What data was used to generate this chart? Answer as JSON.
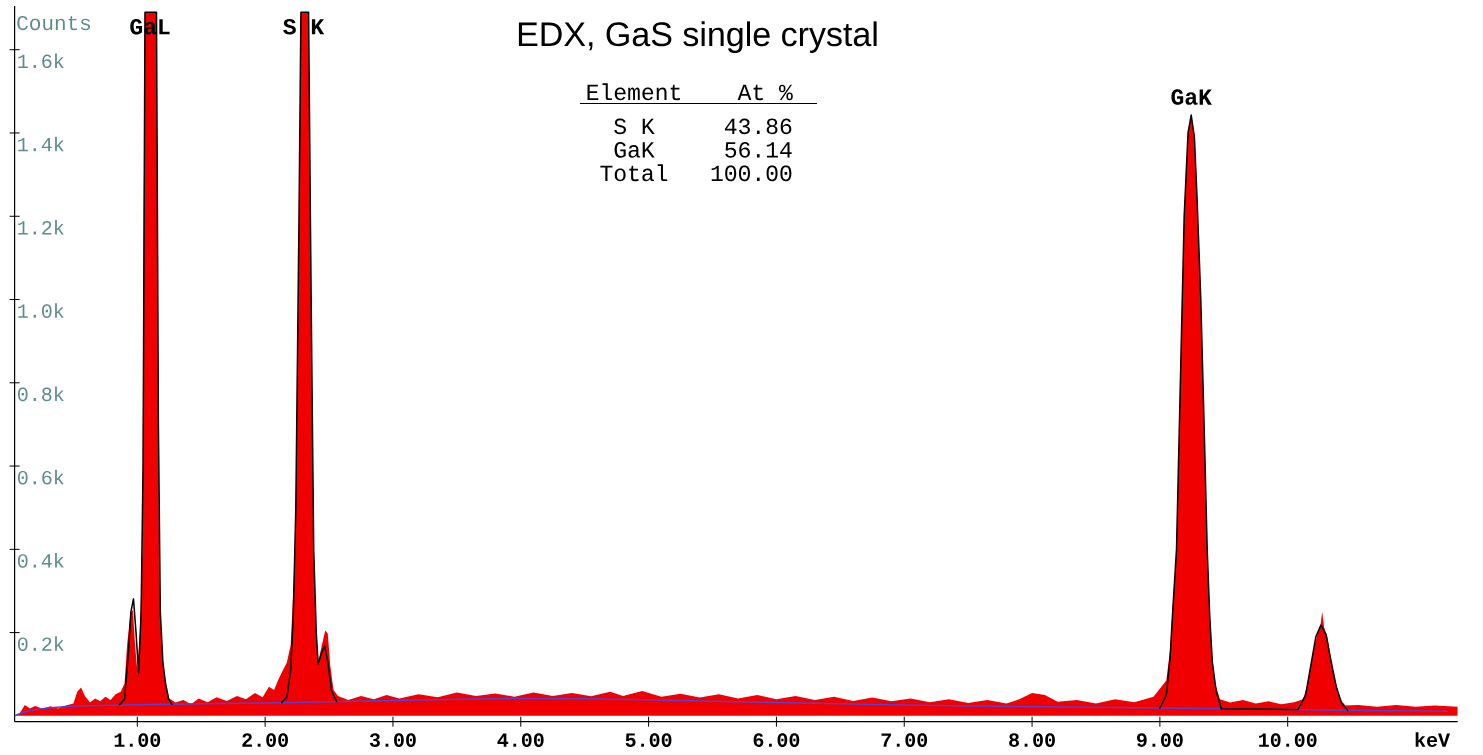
{
  "chart_data": {
    "type": "area",
    "title": "EDX, GaS single crystal",
    "xlabel": "keV",
    "ylabel": "Counts",
    "annotations": [
      {
        "text": "GaL",
        "x": 1.1,
        "y": 1612
      },
      {
        "text": "S K",
        "x": 2.3,
        "y": 1612
      },
      {
        "text": "GaK",
        "x": 9.245,
        "y": 1443
      },
      "Element",
      "At %",
      "S K",
      "43.86",
      "GaK",
      "56.14",
      "Total",
      "100.00"
    ],
    "xlim": [
      0.04,
      11.33
    ],
    "ylim": [
      -14,
      1705
    ],
    "xticks": [
      {
        "value": 1,
        "label": "1.00"
      },
      {
        "value": 2,
        "label": "2.00"
      },
      {
        "value": 3,
        "label": "3.00"
      },
      {
        "value": 4,
        "label": "4.00"
      },
      {
        "value": 5,
        "label": "5.00"
      },
      {
        "value": 6,
        "label": "6.00"
      },
      {
        "value": 7,
        "label": "7.00"
      },
      {
        "value": 8,
        "label": "8.00"
      },
      {
        "value": 9,
        "label": "9.00"
      },
      {
        "value": 10,
        "label": "10.00"
      }
    ],
    "yticks": [
      {
        "value": 200,
        "label": "0.2k"
      },
      {
        "value": 400,
        "label": "0.4k"
      },
      {
        "value": 600,
        "label": "0.6k"
      },
      {
        "value": 800,
        "label": "0.8k"
      },
      {
        "value": 1000,
        "label": "1.0k"
      },
      {
        "value": 1200,
        "label": "1.2k"
      },
      {
        "value": 1400,
        "label": "1.4k"
      },
      {
        "value": 1600,
        "label": "1.6k"
      }
    ],
    "series": [
      {
        "color": "#f00000",
        "x": [
          0.04,
          0.08,
          0.12,
          0.16,
          0.2,
          0.26,
          0.32,
          0.38,
          0.44,
          0.5,
          0.53,
          0.56,
          0.59,
          0.63,
          0.67,
          0.71,
          0.75,
          0.79,
          0.83,
          0.87,
          0.9,
          0.92,
          0.945,
          0.965,
          0.985,
          1.0,
          1.02,
          1.04,
          1.05,
          1.06,
          1.15,
          1.16,
          1.17,
          1.185,
          1.2,
          1.22,
          1.25,
          1.3,
          1.36,
          1.42,
          1.48,
          1.55,
          1.62,
          1.7,
          1.78,
          1.85,
          1.92,
          1.98,
          2.03,
          2.07,
          2.1,
          2.14,
          2.17,
          2.2,
          2.22,
          2.235,
          2.26,
          2.28,
          2.34,
          2.36,
          2.38,
          2.4,
          2.415,
          2.44,
          2.47,
          2.49,
          2.51,
          2.535,
          2.57,
          2.65,
          2.75,
          2.85,
          2.95,
          3.05,
          3.2,
          3.35,
          3.5,
          3.65,
          3.8,
          3.95,
          4.1,
          4.25,
          4.4,
          4.55,
          4.7,
          4.8,
          4.95,
          5.1,
          5.25,
          5.4,
          5.55,
          5.7,
          5.85,
          6.0,
          6.15,
          6.3,
          6.45,
          6.6,
          6.75,
          6.9,
          7.05,
          7.2,
          7.35,
          7.5,
          7.65,
          7.8,
          7.9,
          8.0,
          8.1,
          8.2,
          8.35,
          8.5,
          8.65,
          8.8,
          8.95,
          9.05,
          9.08,
          9.1,
          9.13,
          9.16,
          9.19,
          9.22,
          9.245,
          9.27,
          9.29,
          9.32,
          9.35,
          9.37,
          9.39,
          9.41,
          9.43,
          9.47,
          9.55,
          9.65,
          9.75,
          9.85,
          9.95,
          10.05,
          10.12,
          10.15,
          10.18,
          10.215,
          10.24,
          10.255,
          10.27,
          10.285,
          10.31,
          10.34,
          10.37,
          10.41,
          10.45,
          10.55,
          10.7,
          10.85,
          11.0,
          11.15,
          11.33
        ],
        "values": [
          0,
          6,
          26,
          18,
          24,
          17,
          23,
          18,
          25,
          30,
          58,
          68,
          48,
          32,
          42,
          35,
          46,
          38,
          52,
          58,
          78,
          170,
          245,
          255,
          160,
          110,
          200,
          400,
          1200,
          1690,
          1690,
          1000,
          400,
          200,
          130,
          80,
          42,
          32,
          38,
          28,
          42,
          33,
          45,
          36,
          48,
          40,
          55,
          45,
          70,
          62,
          85,
          110,
          128,
          170,
          300,
          400,
          1000,
          1690,
          1690,
          1000,
          400,
          200,
          128,
          165,
          205,
          198,
          120,
          62,
          48,
          38,
          48,
          40,
          50,
          42,
          52,
          45,
          56,
          48,
          54,
          46,
          56,
          48,
          55,
          47,
          58,
          48,
          60,
          46,
          53,
          44,
          52,
          42,
          50,
          40,
          48,
          38,
          46,
          36,
          44,
          35,
          42,
          33,
          40,
          31,
          38,
          30,
          40,
          55,
          50,
          34,
          38,
          30,
          40,
          33,
          46,
          85,
          160,
          260,
          400,
          800,
          1200,
          1400,
          1443,
          1380,
          1250,
          1000,
          650,
          400,
          240,
          140,
          80,
          40,
          32,
          38,
          30,
          35,
          28,
          33,
          40,
          70,
          120,
          175,
          205,
          215,
          250,
          212,
          190,
          130,
          85,
          40,
          25,
          26,
          22,
          26,
          22,
          25,
          22
        ]
      },
      {
        "type": "line",
        "color": "#5a3fd4",
        "x": [
          0.04,
          0.1,
          0.2,
          0.3,
          0.5,
          1.0,
          1.5,
          2.0,
          2.5,
          3.0,
          3.5,
          4.0,
          4.5,
          5.0,
          5.5,
          6.0,
          6.5,
          7.0,
          7.5,
          8.0,
          8.5,
          10.6,
          11.0,
          11.25
        ],
        "values": [
          0,
          8,
          15,
          19,
          24,
          27,
          29,
          31,
          34,
          37,
          40,
          42,
          41,
          39,
          35,
          32,
          29,
          26,
          24,
          22,
          21,
          13,
          12,
          11
        ]
      },
      {
        "type": "line",
        "color": "#000000",
        "x": [
          0.86,
          0.9,
          0.93,
          0.95,
          0.97,
          0.99,
          1.01,
          1.03,
          1.045,
          1.06,
          1.15,
          1.165,
          1.18,
          1.2,
          1.22,
          1.245,
          1.27
        ],
        "values": [
          27,
          40,
          150,
          250,
          281,
          200,
          103,
          250,
          600,
          1690,
          1690,
          700,
          250,
          130,
          80,
          40,
          28
        ]
      },
      {
        "type": "line",
        "color": "#000000",
        "x": [
          2.13,
          2.17,
          2.2,
          2.22,
          2.24,
          2.265,
          2.28,
          2.34,
          2.36,
          2.38,
          2.4,
          2.415,
          2.44,
          2.465,
          2.49,
          2.52,
          2.56
        ],
        "values": [
          32,
          45,
          110,
          240,
          500,
          1200,
          1690,
          1690,
          1000,
          400,
          200,
          125,
          150,
          168,
          130,
          60,
          34
        ]
      },
      {
        "type": "line",
        "color": "#000000",
        "x": [
          9.0,
          9.05,
          9.08,
          9.1,
          9.13,
          9.16,
          9.19,
          9.22,
          9.245,
          9.27,
          9.29,
          9.32,
          9.35,
          9.37,
          9.39,
          9.41,
          9.44,
          9.48,
          10.08,
          10.14,
          10.18,
          10.22,
          10.26,
          10.3,
          10.34,
          10.38,
          10.42,
          10.47
        ],
        "values": [
          19,
          50,
          140,
          250,
          400,
          800,
          1200,
          1400,
          1443,
          1390,
          1250,
          1000,
          650,
          400,
          240,
          130,
          60,
          17,
          15,
          50,
          120,
          190,
          218,
          195,
          130,
          70,
          32,
          13
        ]
      }
    ]
  }
}
